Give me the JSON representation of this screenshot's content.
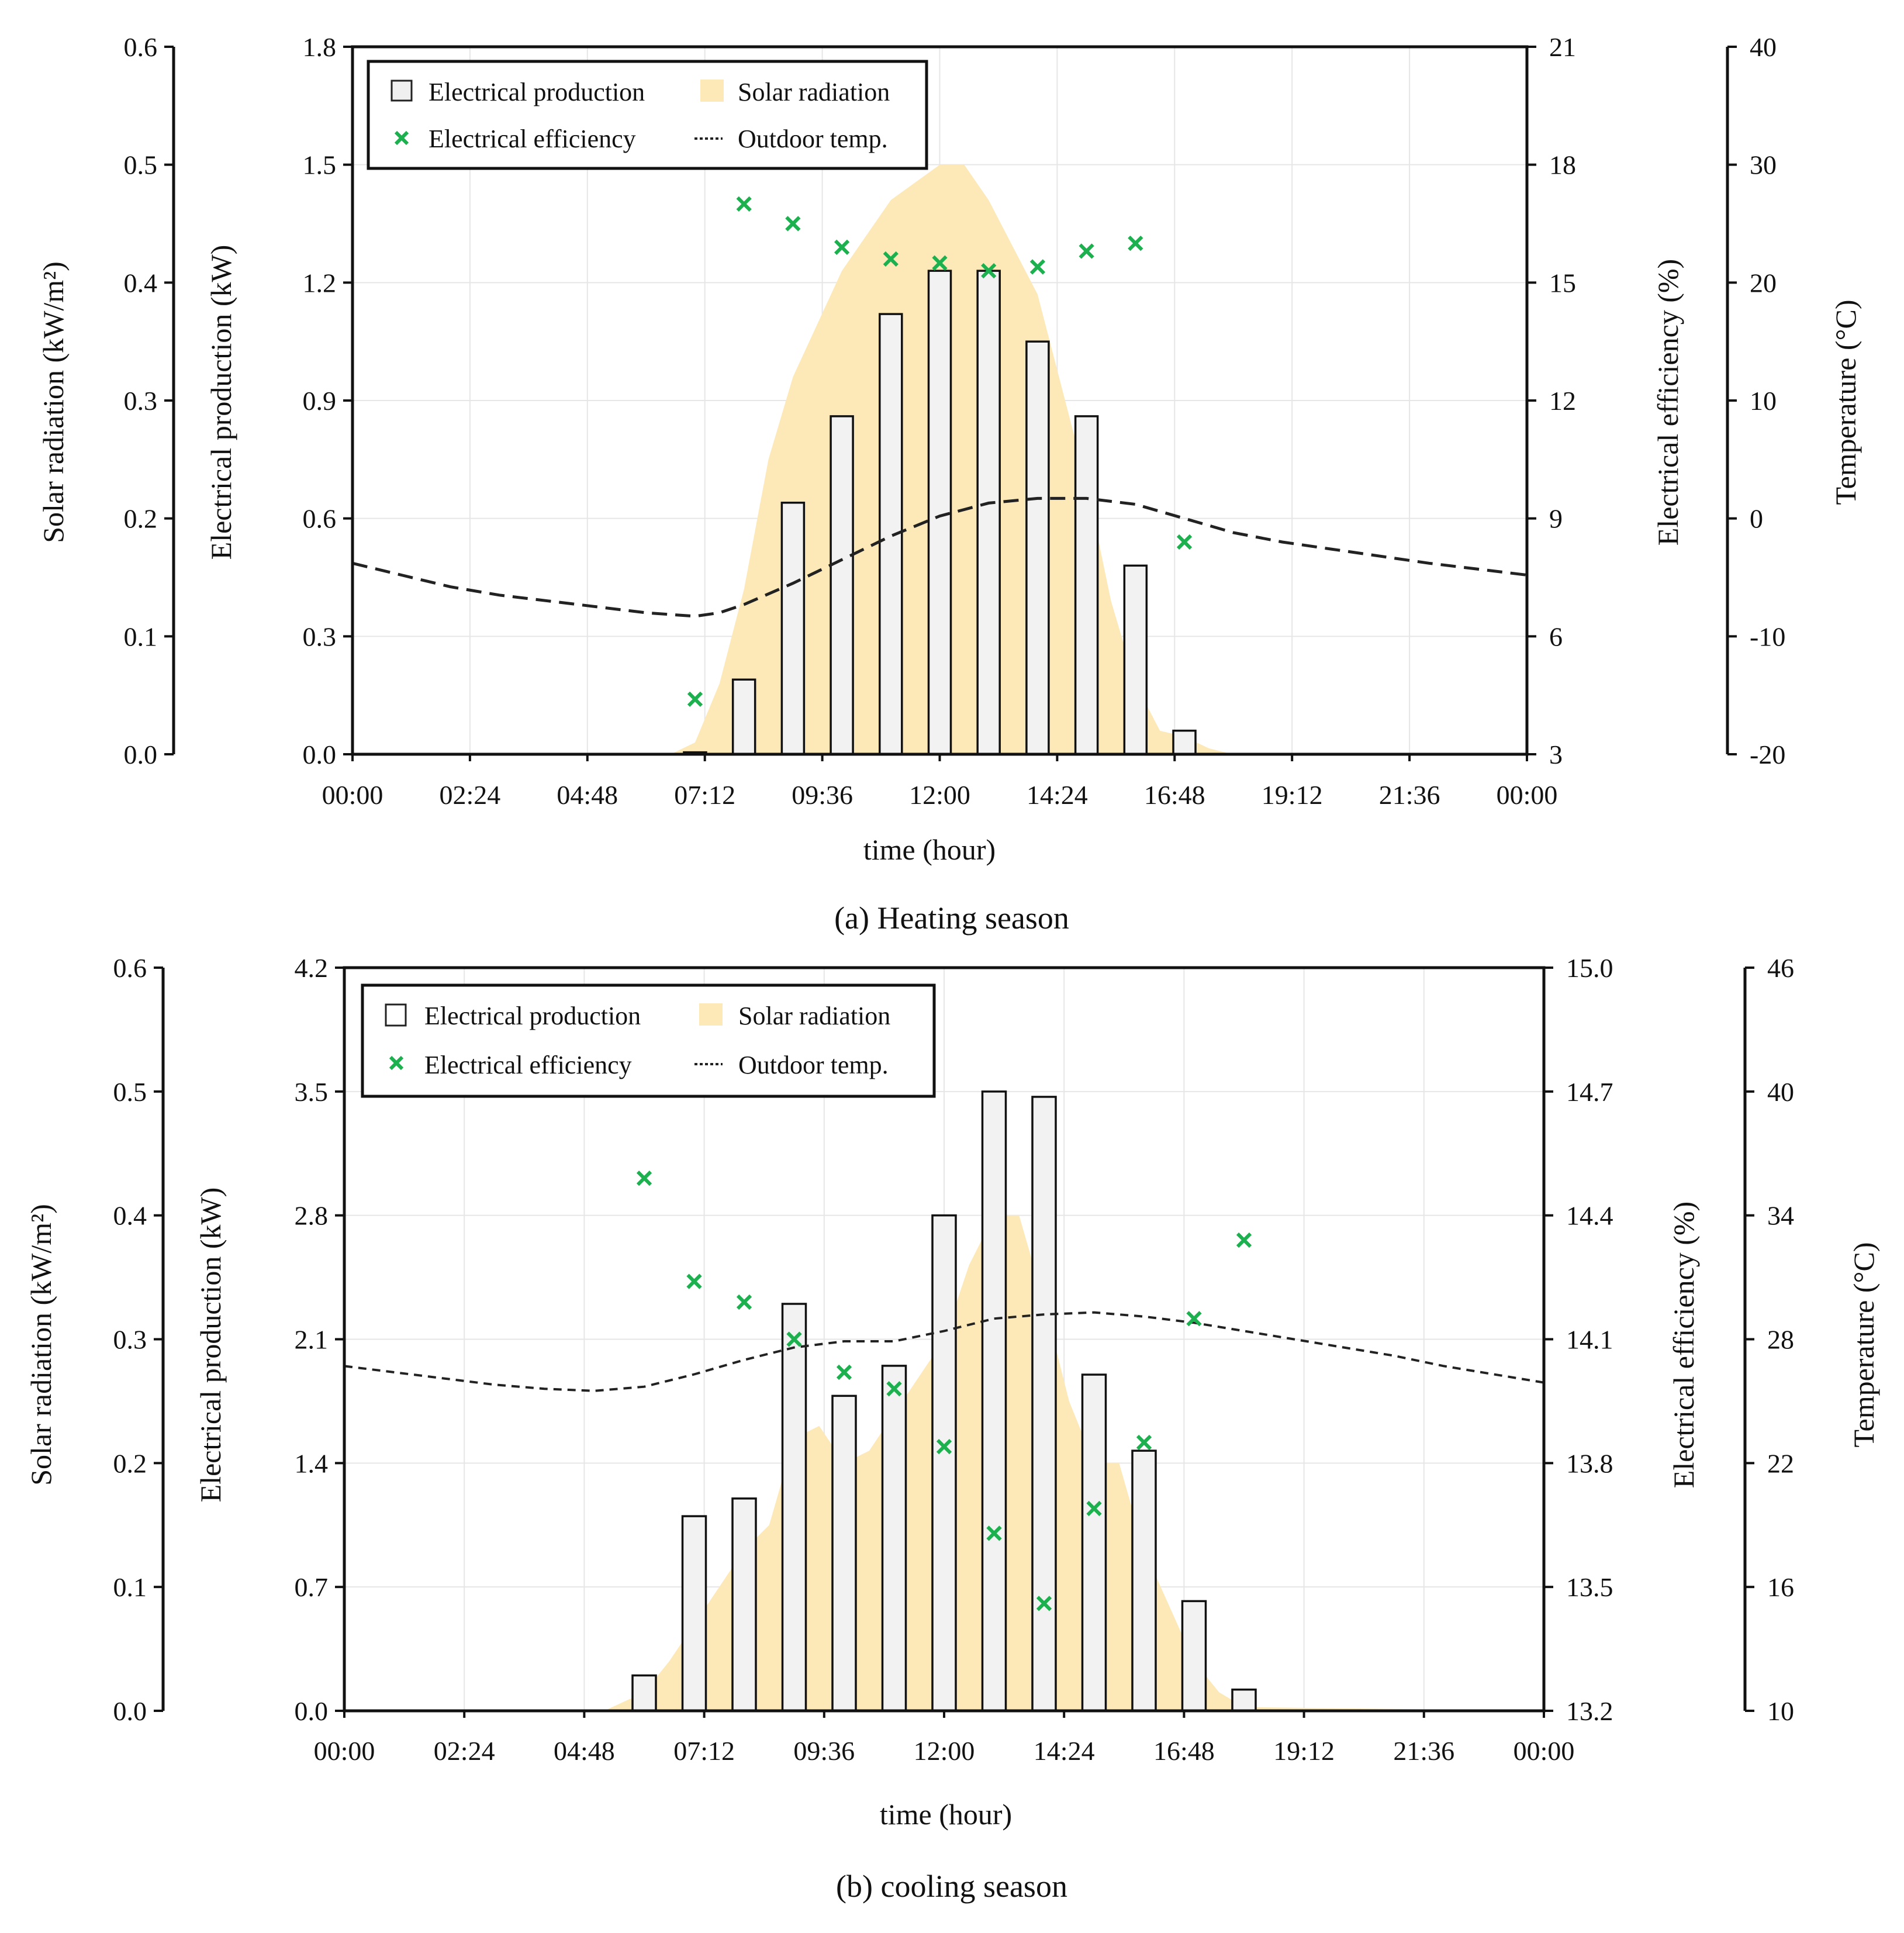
{
  "chart_data": [
    {
      "type": "bar",
      "caption": "(a) Heating season",
      "xlabel": "time (hour)",
      "x_tick_labels": [
        "00:00",
        "02:24",
        "04:48",
        "07:12",
        "09:36",
        "12:00",
        "14:24",
        "16:48",
        "19:12",
        "21:36",
        "00:00"
      ],
      "xlim_hours": [
        0,
        24
      ],
      "axes": {
        "production": {
          "label": "Electrical production (kW)",
          "ylim": [
            0,
            1.8
          ],
          "ticks": [
            "0.0",
            "0.3",
            "0.6",
            "0.9",
            "1.2",
            "1.5",
            "1.8"
          ]
        },
        "radiation": {
          "label": "Solar radiation (kW/m²)",
          "ylim": [
            0,
            0.6
          ],
          "ticks": [
            "0.0",
            "0.1",
            "0.2",
            "0.3",
            "0.4",
            "0.5",
            "0.6"
          ]
        },
        "efficiency": {
          "label": "Electrical efficiency (%)",
          "ylim": [
            3,
            21
          ],
          "ticks": [
            "3",
            "6",
            "9",
            "12",
            "15",
            "18",
            "21"
          ]
        },
        "temperature": {
          "label": "Temperature (°C)",
          "ylim": [
            -20,
            40
          ],
          "ticks": [
            "-20",
            "-10",
            "0",
            "10",
            "20",
            "30",
            "40"
          ]
        }
      },
      "legend": [
        {
          "key": "production",
          "label": "Electrical production"
        },
        {
          "key": "radiation",
          "label": "Solar radiation"
        },
        {
          "key": "efficiency",
          "label": "Electrical efficiency"
        },
        {
          "key": "temperature",
          "label": "Outdoor temp."
        }
      ],
      "production": {
        "hours": [
          7,
          8,
          9,
          10,
          11,
          12,
          13,
          14,
          15,
          16,
          17
        ],
        "values": [
          0.005,
          0.19,
          0.64,
          0.86,
          1.12,
          1.23,
          1.23,
          1.05,
          0.86,
          0.48,
          0.06
        ]
      },
      "radiation": {
        "hours": [
          0,
          6.5,
          7,
          7.5,
          8,
          8.5,
          9,
          10,
          11,
          12,
          12.5,
          13,
          14,
          15,
          15.5,
          16,
          16.5,
          17,
          17.5,
          18,
          24
        ],
        "values": [
          0,
          0,
          0.01,
          0.06,
          0.14,
          0.25,
          0.32,
          0.41,
          0.47,
          0.5,
          0.5,
          0.47,
          0.39,
          0.23,
          0.13,
          0.06,
          0.02,
          0.015,
          0.005,
          0,
          0
        ]
      },
      "efficiency": {
        "hours": [
          7,
          8,
          9,
          10,
          11,
          12,
          13,
          14,
          15,
          16,
          17
        ],
        "values": [
          4.4,
          17.0,
          16.5,
          15.9,
          15.6,
          15.5,
          15.3,
          15.4,
          15.8,
          16.0,
          8.4
        ]
      },
      "temperature": {
        "hours": [
          0,
          1,
          2,
          3,
          4,
          5,
          6,
          7,
          7.5,
          8,
          9,
          10,
          11,
          12,
          13,
          14,
          15,
          16,
          17,
          18,
          19,
          20,
          21,
          22,
          23,
          24
        ],
        "values": [
          -3.8,
          -4.8,
          -5.8,
          -6.5,
          -7.0,
          -7.5,
          -8.0,
          -8.3,
          -8.0,
          -7.3,
          -5.5,
          -3.5,
          -1.5,
          0.2,
          1.3,
          1.7,
          1.7,
          1.2,
          0,
          -1.2,
          -2.0,
          -2.6,
          -3.2,
          -3.8,
          -4.3,
          -4.8
        ]
      }
    },
    {
      "type": "bar",
      "caption": "(b) cooling season",
      "xlabel": "time (hour)",
      "x_tick_labels": [
        "00:00",
        "02:24",
        "04:48",
        "07:12",
        "09:36",
        "12:00",
        "14:24",
        "16:48",
        "19:12",
        "21:36",
        "00:00"
      ],
      "xlim_hours": [
        0,
        24
      ],
      "axes": {
        "production": {
          "label": "Electrical production (kW)",
          "ylim": [
            0,
            4.2
          ],
          "ticks": [
            "0.0",
            "0.7",
            "1.4",
            "2.1",
            "2.8",
            "3.5",
            "4.2"
          ]
        },
        "radiation": {
          "label": "Solar radiation (kW/m²)",
          "ylim": [
            0,
            0.6
          ],
          "ticks": [
            "0.0",
            "0.1",
            "0.2",
            "0.3",
            "0.4",
            "0.5",
            "0.6"
          ]
        },
        "efficiency": {
          "label": "Electrical efficiency (%)",
          "ylim": [
            13.2,
            15.0
          ],
          "ticks": [
            "13.2",
            "13.5",
            "13.8",
            "14.1",
            "14.4",
            "14.7",
            "15.0"
          ]
        },
        "temperature": {
          "label": "Temperature (°C)",
          "ylim": [
            10,
            46
          ],
          "ticks": [
            "10",
            "16",
            "22",
            "28",
            "34",
            "40",
            "46"
          ]
        }
      },
      "legend": [
        {
          "key": "production",
          "label": "Electrical production"
        },
        {
          "key": "radiation",
          "label": "Solar radiation"
        },
        {
          "key": "efficiency",
          "label": "Electrical efficiency"
        },
        {
          "key": "temperature",
          "label": "Outdoor temp."
        }
      ],
      "production": {
        "hours": [
          6,
          7,
          8,
          9,
          10,
          11,
          12,
          13,
          14,
          15,
          16,
          17,
          18
        ],
        "values": [
          0.2,
          1.1,
          1.2,
          2.3,
          1.78,
          1.95,
          2.8,
          3.5,
          3.47,
          1.9,
          1.47,
          0.62,
          0.12
        ]
      },
      "radiation": {
        "hours": [
          0,
          5.2,
          6,
          6.5,
          7,
          7.5,
          8,
          8.5,
          9,
          9.5,
          10,
          10.5,
          11,
          11.5,
          12,
          12.5,
          13,
          13.5,
          14,
          14.5,
          15,
          15.5,
          16,
          17,
          17.5,
          18,
          24
        ],
        "values": [
          0,
          0,
          0.015,
          0.04,
          0.07,
          0.1,
          0.13,
          0.15,
          0.22,
          0.23,
          0.2,
          0.21,
          0.24,
          0.27,
          0.3,
          0.36,
          0.4,
          0.4,
          0.33,
          0.25,
          0.2,
          0.2,
          0.13,
          0.04,
          0.015,
          0.003,
          0
        ]
      },
      "efficiency": {
        "hours": [
          6,
          7,
          8,
          9,
          10,
          11,
          12,
          13,
          14,
          15,
          16,
          17,
          18
        ],
        "values": [
          14.49,
          14.24,
          14.19,
          14.1,
          14.02,
          13.98,
          13.84,
          13.63,
          13.46,
          13.69,
          13.85,
          14.15,
          14.34
        ]
      },
      "temperature": {
        "hours": [
          0,
          1,
          2,
          3,
          4,
          5,
          6,
          7,
          8,
          9,
          10,
          11,
          12,
          13,
          14,
          15,
          16,
          17,
          18,
          19,
          20,
          21,
          22,
          23,
          24
        ],
        "values": [
          26.7,
          26.4,
          26.1,
          25.8,
          25.6,
          25.5,
          25.7,
          26.3,
          27.0,
          27.6,
          27.9,
          27.9,
          28.4,
          29.0,
          29.2,
          29.3,
          29.1,
          28.8,
          28.4,
          28.0,
          27.6,
          27.2,
          26.7,
          26.3,
          25.9
        ]
      }
    }
  ]
}
